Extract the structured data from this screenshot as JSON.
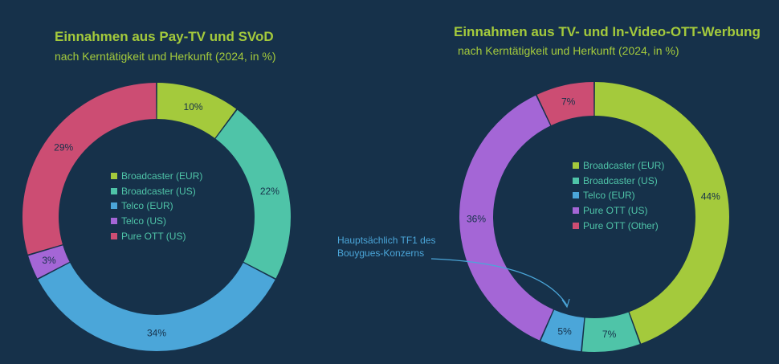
{
  "charts_meta": {
    "left_title": "Einnahmen aus Pay-TV und SVoD",
    "left_subtitle": "nach Kerntätigkeit und Herkunft (2024, in %)",
    "right_title": "Einnahmen aus TV- und In-Video-OTT-Werbung",
    "right_subtitle": "nach Kerntätigkeit und Herkunft (2024, in %)",
    "annotation_line1": "Hauptsächlich TF1 des",
    "annotation_line2": "Bouygues-Konzerns"
  },
  "chart_data": [
    {
      "type": "pie",
      "variant": "donut",
      "title": "Einnahmen aus Pay-TV und SVoD",
      "subtitle": "nach Kerntätigkeit und Herkunft (2024, in %)",
      "legend_position": "center",
      "categories": [
        "Broadcaster (EUR)",
        "Broadcaster (US)",
        "Telco (EUR)",
        "Telco (US)",
        "Pure OTT (US)"
      ],
      "values": [
        10,
        22,
        34,
        3,
        29
      ],
      "labels": [
        "10%",
        "22%",
        "34%",
        "3%",
        "29%"
      ],
      "colors": [
        "#a4ca3c",
        "#4fc4a8",
        "#4ba6d9",
        "#a466d6",
        "#cc4d73"
      ]
    },
    {
      "type": "pie",
      "variant": "donut",
      "title": "Einnahmen aus TV- und In-Video-OTT-Werbung",
      "subtitle": "nach Kerntätigkeit und Herkunft (2024, in %)",
      "legend_position": "center",
      "categories": [
        "Broadcaster (EUR)",
        "Broadcaster (US)",
        "Telco (EUR)",
        "Pure OTT (US)",
        "Pure OTT (Other)"
      ],
      "values": [
        44,
        7,
        5,
        36,
        7
      ],
      "labels": [
        "44%",
        "7%",
        "5%",
        "36%",
        "7%"
      ],
      "colors": [
        "#a4ca3c",
        "#4fc4a8",
        "#4ba6d9",
        "#a466d6",
        "#cc4d73"
      ],
      "annotation": "Hauptsächlich TF1 des Bouygues-Konzerns"
    }
  ]
}
